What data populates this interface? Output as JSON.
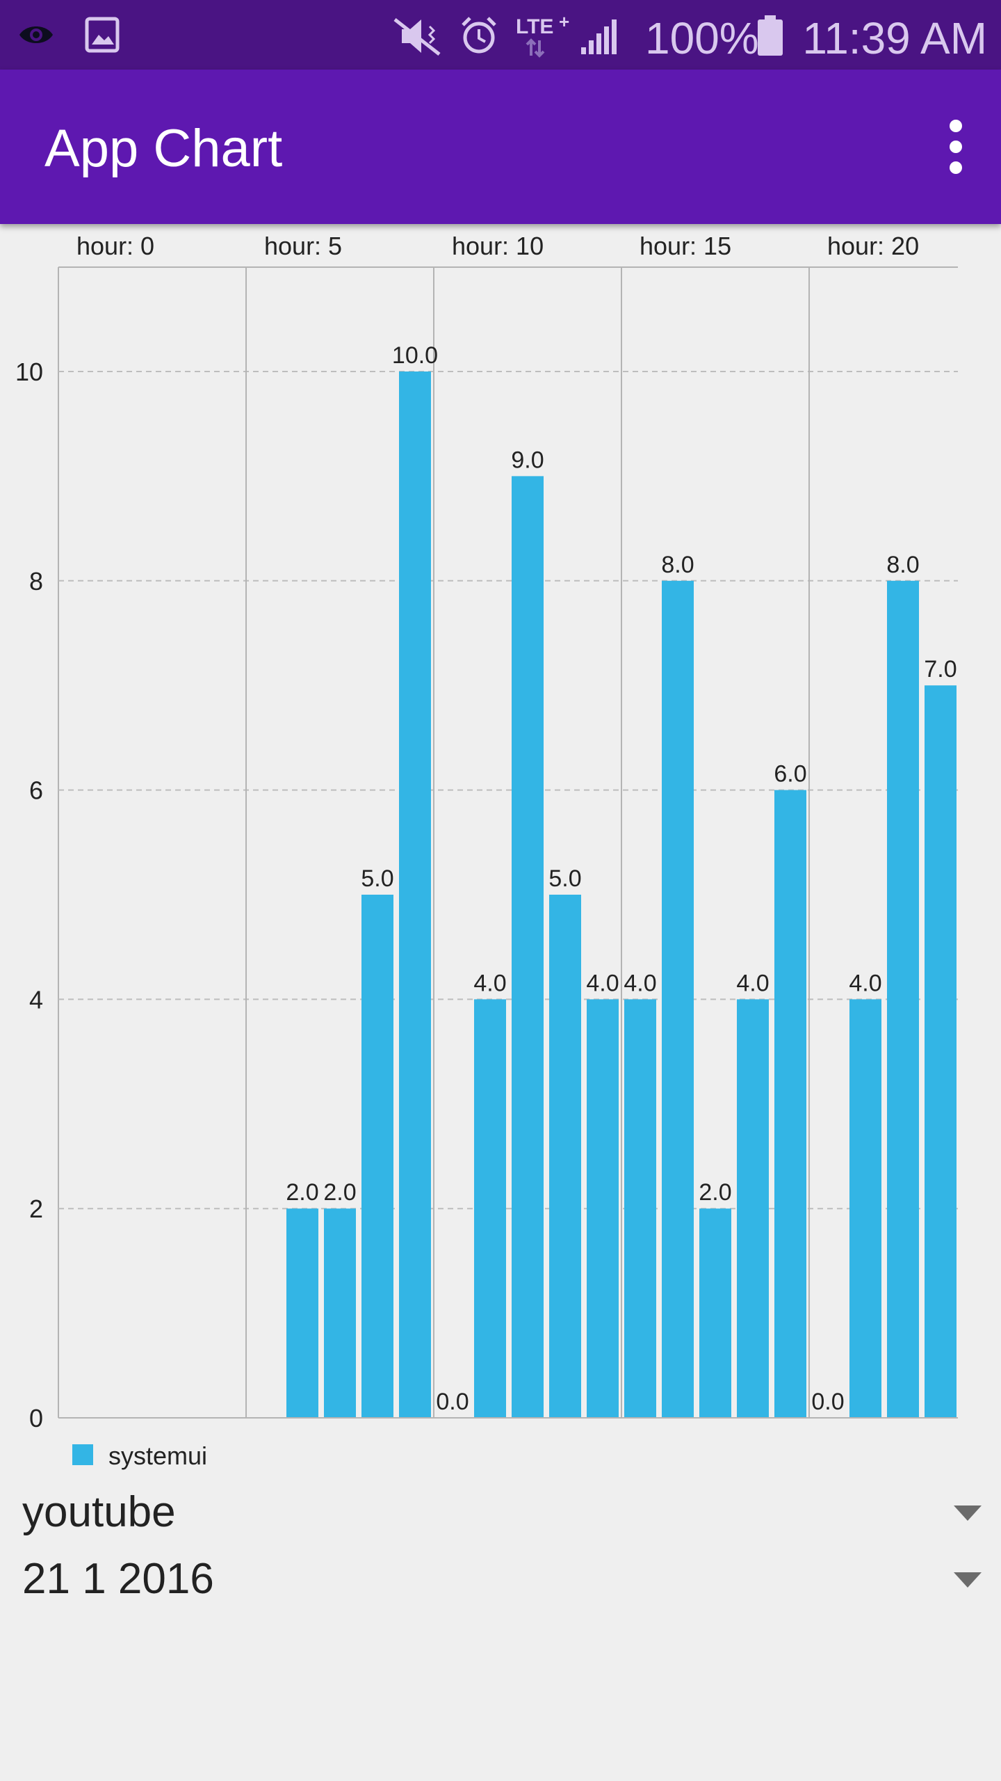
{
  "status_bar": {
    "battery": "100%",
    "time": "11:39 AM",
    "icons": [
      "eye-icon",
      "gallery-icon",
      "mute-icon",
      "alarm-icon",
      "lte-icon",
      "signal-icon",
      "battery-icon"
    ]
  },
  "app_bar": {
    "title": "App Chart",
    "menu_icon": "more-vert-icon"
  },
  "chart_data": {
    "type": "bar",
    "series": [
      {
        "name": "systemui",
        "color": "#33b5e5",
        "x": [
          7,
          8,
          9,
          10,
          11,
          12,
          13,
          14,
          15,
          16,
          17,
          18,
          19,
          20,
          21,
          22,
          23,
          24
        ],
        "values": [
          2.0,
          2.0,
          5.0,
          10.0,
          0.0,
          4.0,
          9.0,
          5.0,
          4.0,
          4.0,
          8.0,
          2.0,
          4.0,
          6.0,
          0.0,
          4.0,
          8.0,
          7.0
        ],
        "value_labels": [
          "2.0",
          "2.0",
          "5.0",
          "10.0",
          "0.0",
          "4.0",
          "9.0",
          "5.0",
          "4.0",
          "4.0",
          "8.0",
          "2.0",
          "4.0",
          "6.0",
          "0.0",
          "4.0",
          "8.0",
          "7.0"
        ]
      }
    ],
    "x_top_labels": [
      "hour: 0",
      "hour: 5",
      "hour: 10",
      "hour: 15",
      "hour: 20"
    ],
    "x_top_positions": [
      0,
      5,
      10,
      15,
      20
    ],
    "xlim": [
      0,
      24.4
    ],
    "ylim": [
      0,
      11
    ],
    "y_ticks": [
      "0",
      "2",
      "4",
      "6",
      "8",
      "10"
    ],
    "y_tick_values": [
      0,
      2,
      4,
      6,
      8,
      10
    ],
    "grid": "horizontal dashed, vertical solid at labeled hours",
    "legend": "bottom-left"
  },
  "legend": {
    "label": "systemui",
    "color": "#33b5e5"
  },
  "app_spinner": {
    "value": "youtube"
  },
  "date_spinner": {
    "value": "21 1 2016"
  }
}
